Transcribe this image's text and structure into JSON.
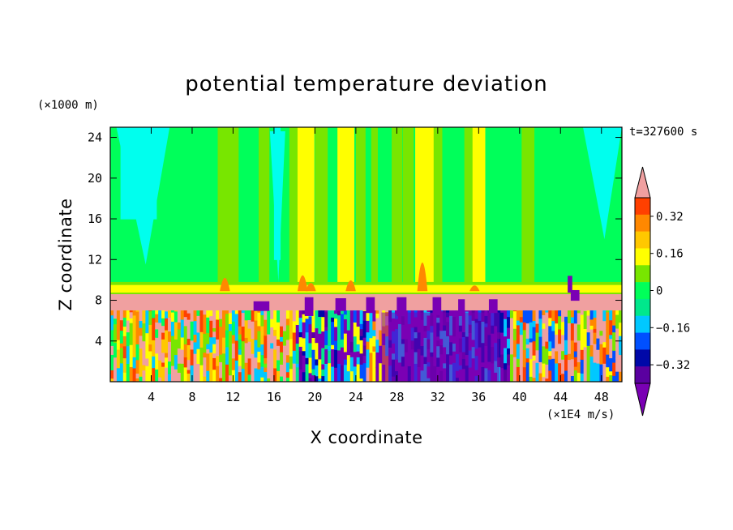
{
  "chart_data": {
    "type": "heatmap",
    "title": "potential temperature deviation",
    "xlabel": "X coordinate",
    "ylabel": "Z coordinate",
    "x_unit": "(×1E4 m/s)",
    "y_unit": "(×1000 m)",
    "time_label": "t=327600 s",
    "xlim": [
      0,
      50
    ],
    "ylim": [
      0,
      25
    ],
    "x_ticks": [
      4,
      8,
      12,
      16,
      20,
      24,
      28,
      32,
      36,
      40,
      44,
      48
    ],
    "y_ticks": [
      4,
      8,
      12,
      16,
      20,
      24
    ],
    "colorbar": {
      "levels": [
        -0.48,
        -0.4,
        -0.32,
        -0.24,
        -0.16,
        -0.08,
        0,
        0.08,
        0.16,
        0.24,
        0.32,
        0.4,
        0.48
      ],
      "colors": [
        "#7a00b4",
        "#5a00a0",
        "#0008a8",
        "#0050ff",
        "#00c8ff",
        "#00e88c",
        "#00ff5a",
        "#78e600",
        "#ffff00",
        "#ffc800",
        "#ff8800",
        "#ff4000",
        "#f0a0a0"
      ],
      "tick_labels": [
        "0.32",
        "0.16",
        "0",
        "−0.16",
        "−0.32"
      ],
      "tick_values": [
        0.32,
        0.16,
        0,
        -0.16,
        -0.32
      ],
      "extend": "both"
    }
  }
}
